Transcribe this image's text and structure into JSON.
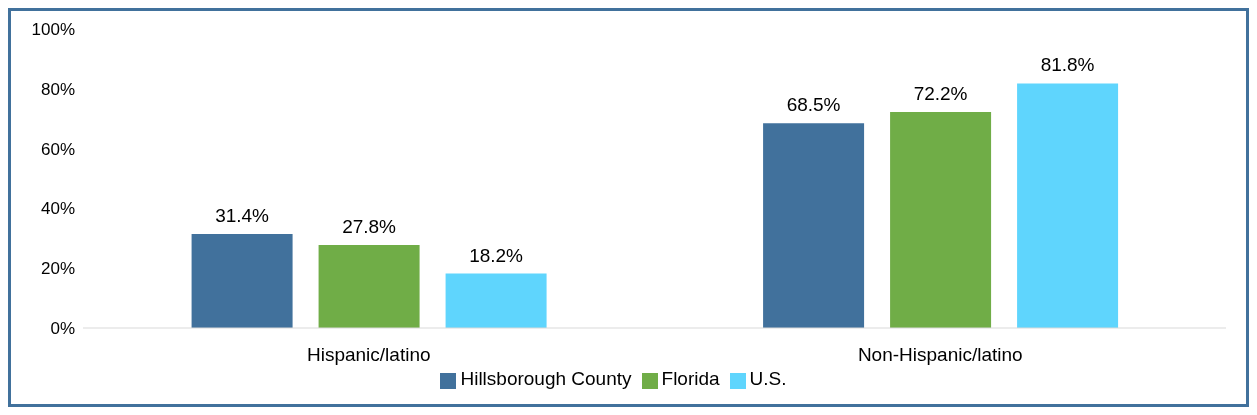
{
  "chart_data": {
    "type": "bar",
    "categories": [
      "Hispanic/latino",
      "Non-Hispanic/latino"
    ],
    "series": [
      {
        "name": "Hillsborough County",
        "color": "#41719c",
        "values": [
          31.4,
          68.5
        ],
        "value_labels": [
          "31.4%",
          "68.5%"
        ]
      },
      {
        "name": "Florida",
        "color": "#70ad47",
        "values": [
          27.8,
          72.2
        ],
        "value_labels": [
          "27.8%",
          "72.2%"
        ]
      },
      {
        "name": "U.S.",
        "color": "#5fd5fd",
        "values": [
          18.2,
          81.8
        ],
        "value_labels": [
          "18.2%",
          "81.8%"
        ]
      }
    ],
    "ylim": [
      0,
      100
    ],
    "yticks": [
      {
        "value": 0,
        "label": "0%"
      },
      {
        "value": 20,
        "label": "20%"
      },
      {
        "value": 40,
        "label": "40%"
      },
      {
        "value": 60,
        "label": "60%"
      },
      {
        "value": 80,
        "label": "80%"
      },
      {
        "value": 100,
        "label": "100%"
      }
    ],
    "grid": false,
    "legend": "bottom"
  }
}
